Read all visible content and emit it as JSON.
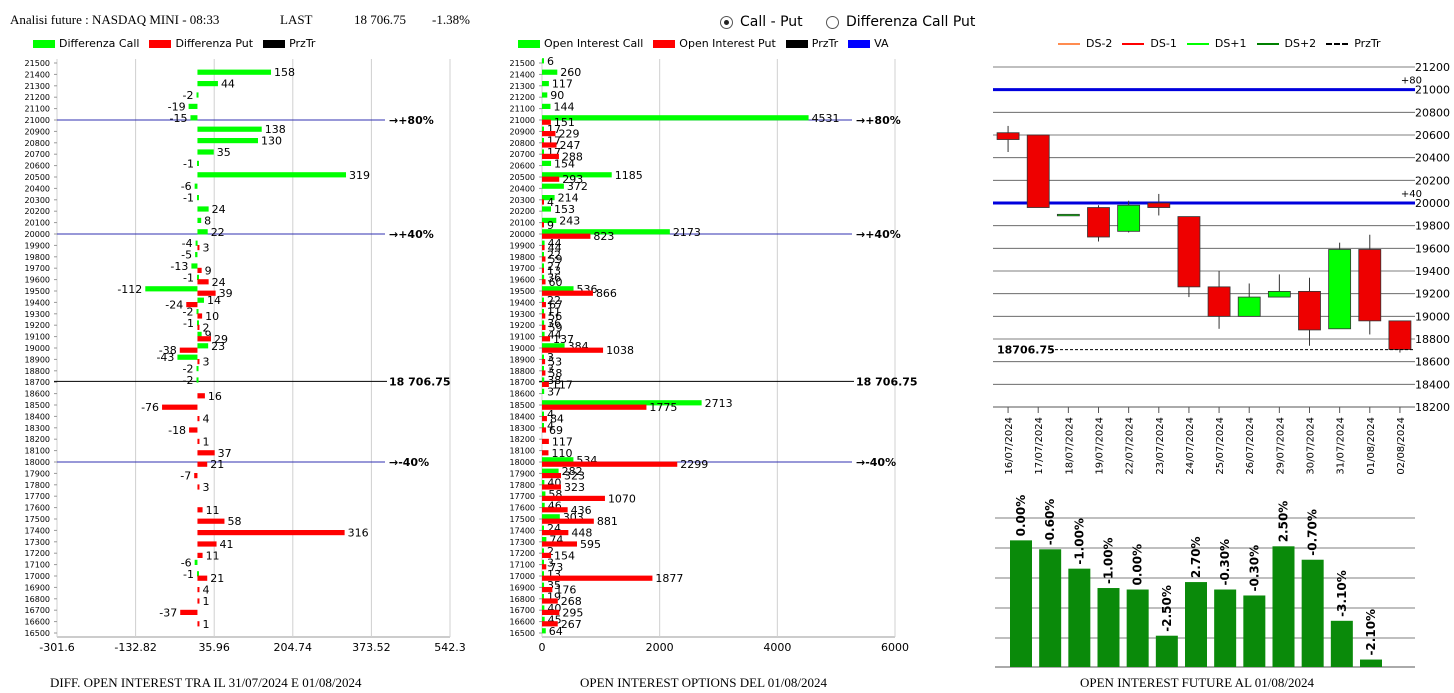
{
  "header": {
    "title": "Analisi future : NASDAQ MINI - 08:33",
    "last_label": "LAST",
    "last_value": "18 706.75",
    "change": "-1.38%"
  },
  "mode": {
    "option1": "Call - Put",
    "option2": "Differenza Call Put",
    "selected": "Call - Put"
  },
  "legend_left": [
    {
      "label": "Differenza Call",
      "color": "#00ff00"
    },
    {
      "label": "Differenza Put",
      "color": "#ff0000"
    },
    {
      "label": "PrzTr",
      "color": "#000000"
    }
  ],
  "legend_mid": [
    {
      "label": "Open Interest Call",
      "color": "#00ff00"
    },
    {
      "label": "Open Interest Put",
      "color": "#ff0000"
    },
    {
      "label": "PrzTr",
      "color": "#000000"
    },
    {
      "label": "VA",
      "color": "#0000ff"
    }
  ],
  "legend_right": [
    {
      "label": "DS-2",
      "color": "#ff8c50",
      "style": "solid"
    },
    {
      "label": "DS-1",
      "color": "#ff0000",
      "style": "solid"
    },
    {
      "label": "DS+1",
      "color": "#00ff00",
      "style": "solid"
    },
    {
      "label": "DS+2",
      "color": "#008000",
      "style": "solid"
    },
    {
      "label": "PrzTr",
      "color": "#000000",
      "style": "dashed"
    }
  ],
  "footers": {
    "left": "DIFF. OPEN INTEREST TRA IL 31/07/2024 E 01/08/2024",
    "mid": "OPEN INTEREST OPTIONS DEL 01/08/2024",
    "right": "OPEN INTEREST FUTURE AL 01/08/2024"
  },
  "chart_data": [
    {
      "type": "bar",
      "orientation": "horizontal",
      "categories": [
        21500,
        21400,
        21300,
        21200,
        21100,
        21000,
        20900,
        20800,
        20700,
        20600,
        20500,
        20400,
        20300,
        20200,
        20100,
        20000,
        19900,
        19800,
        19700,
        19600,
        19500,
        19400,
        19300,
        19200,
        19100,
        19000,
        18900,
        18800,
        18700,
        18600,
        18500,
        18400,
        18300,
        18200,
        18100,
        18000,
        17900,
        17800,
        17700,
        17600,
        17500,
        17400,
        17300,
        17200,
        17100,
        17000,
        16900,
        16800,
        16700,
        16600,
        16500
      ],
      "series": [
        {
          "name": "Differenza Call",
          "color": "#00ff00",
          "values": [
            null,
            158,
            44,
            -2,
            -19,
            -15,
            138,
            130,
            35,
            -1,
            319,
            -6,
            -1,
            24,
            8,
            22,
            -4,
            -5,
            -13,
            -1,
            -112,
            14,
            -2,
            -1,
            9,
            23,
            -43,
            -2,
            -2,
            null,
            null,
            null,
            null,
            null,
            null,
            null,
            null,
            null,
            null,
            null,
            null,
            null,
            null,
            null,
            -6,
            -1,
            null,
            null,
            null,
            null,
            null
          ]
        },
        {
          "name": "Differenza Put",
          "color": "#ff0000",
          "values": [
            null,
            null,
            null,
            null,
            null,
            null,
            null,
            null,
            null,
            null,
            null,
            null,
            null,
            null,
            null,
            null,
            3,
            null,
            9,
            24,
            39,
            -24,
            10,
            2,
            29,
            -38,
            3,
            null,
            null,
            16,
            -76,
            4,
            -18,
            1,
            37,
            21,
            -7,
            3,
            null,
            11,
            58,
            316,
            41,
            11,
            null,
            21,
            4,
            1,
            -37,
            1,
            null
          ]
        }
      ],
      "xticks": [
        "-301.6",
        "-132.82",
        "35.96",
        "204.74",
        "373.52",
        "542.3"
      ],
      "xlim": [
        -301.6,
        542.3
      ],
      "ref_lines": [
        {
          "level": 21000,
          "label": "+80%"
        },
        {
          "level": 20000,
          "label": "+40%"
        },
        {
          "level": 18000,
          "label": "-40%"
        }
      ],
      "price_line": {
        "level": 18706.75,
        "label": "18 706.75"
      }
    },
    {
      "type": "bar",
      "orientation": "horizontal",
      "categories": [
        21500,
        21400,
        21300,
        21200,
        21100,
        21000,
        20900,
        20800,
        20700,
        20600,
        20500,
        20400,
        20300,
        20200,
        20100,
        20000,
        19900,
        19800,
        19700,
        19600,
        19500,
        19400,
        19300,
        19200,
        19100,
        19000,
        18900,
        18800,
        18700,
        18600,
        18500,
        18400,
        18300,
        18200,
        18100,
        18000,
        17900,
        17800,
        17700,
        17600,
        17500,
        17400,
        17300,
        17200,
        17100,
        17000,
        16900,
        16800,
        16700,
        16600,
        16500
      ],
      "series": [
        {
          "name": "Open Interest Call",
          "color": "#00ff00",
          "values": [
            6,
            260,
            117,
            90,
            144,
            4531,
            17,
            17,
            17,
            154,
            1185,
            372,
            214,
            153,
            243,
            2173,
            44,
            22,
            27,
            36,
            536,
            22,
            11,
            36,
            44,
            384,
            3,
            3,
            38,
            37,
            2713,
            4,
            4,
            null,
            null,
            534,
            282,
            40,
            58,
            46,
            303,
            24,
            74,
            2,
            3,
            13,
            35,
            19,
            40,
            45,
            64
          ]
        },
        {
          "name": "Open Interest Put",
          "color": "#ff0000",
          "values": [
            null,
            null,
            null,
            null,
            null,
            151,
            229,
            247,
            288,
            null,
            293,
            null,
            4,
            null,
            9,
            823,
            44,
            59,
            13,
            60,
            866,
            67,
            56,
            59,
            137,
            1038,
            53,
            58,
            117,
            null,
            1775,
            84,
            69,
            117,
            110,
            2299,
            323,
            323,
            1070,
            436,
            881,
            448,
            595,
            154,
            73,
            1877,
            176,
            268,
            295,
            267,
            null
          ]
        }
      ],
      "xticks": [
        "0",
        "2000",
        "4000",
        "6000"
      ],
      "xlim": [
        0,
        6000
      ],
      "ref_lines": [
        {
          "level": 21000,
          "label": "+80%"
        },
        {
          "level": 20000,
          "label": "+40%"
        },
        {
          "level": 18000,
          "label": "-40%"
        }
      ],
      "price_line": {
        "level": 18706.75,
        "label": "18 706.75"
      }
    },
    {
      "type": "candlestick",
      "dates": [
        "16/07/2024",
        "17/07/2024",
        "18/07/2024",
        "19/07/2024",
        "22/07/2024",
        "23/07/2024",
        "24/07/2024",
        "25/07/2024",
        "26/07/2024",
        "29/07/2024",
        "30/07/2024",
        "31/07/2024",
        "01/08/2024",
        "02/08/2024"
      ],
      "ohlc": [
        [
          20620,
          20680,
          20450,
          20560
        ],
        [
          20600,
          20600,
          19960,
          19960
        ],
        [
          19900,
          19900,
          19900,
          19900
        ],
        [
          19960,
          19980,
          19660,
          19700
        ],
        [
          19750,
          20020,
          19740,
          19980
        ],
        [
          20000,
          20080,
          19890,
          19960
        ],
        [
          19880,
          19880,
          19170,
          19260
        ],
        [
          19260,
          19400,
          18890,
          19000
        ],
        [
          19000,
          19290,
          19000,
          19170
        ],
        [
          19170,
          19370,
          19170,
          19220
        ],
        [
          19220,
          19340,
          18740,
          18880
        ],
        [
          18890,
          19650,
          18890,
          19590
        ],
        [
          19590,
          19720,
          18840,
          18960
        ],
        [
          18960,
          18960,
          18680,
          18706.75
        ]
      ],
      "yticks": [
        "21200",
        "21000",
        "20800",
        "20600",
        "20400",
        "20200",
        "20000",
        "19800",
        "19600",
        "19400",
        "19200",
        "19000",
        "18800",
        "18600",
        "18400",
        "18200"
      ],
      "ylim": [
        18200,
        21200
      ],
      "hlines": [
        {
          "level": 21000,
          "label": "+80"
        },
        {
          "level": 20000,
          "label": "+40"
        }
      ],
      "price_label": "18706.75",
      "price": 18706.75
    },
    {
      "type": "bar",
      "labels": [
        "0.00%",
        "-0.60%",
        "-1.00%",
        "-1.00%",
        "0.00%",
        "-2.50%",
        "2.70%",
        "-0.30%",
        "-0.30%",
        "2.50%",
        "-0.70%",
        "-3.10%",
        "-2.10%"
      ],
      "values": [
        0.85,
        0.79,
        0.66,
        0.53,
        0.52,
        0.21,
        0.57,
        0.52,
        0.48,
        0.81,
        0.72,
        0.31,
        0.05
      ]
    }
  ]
}
